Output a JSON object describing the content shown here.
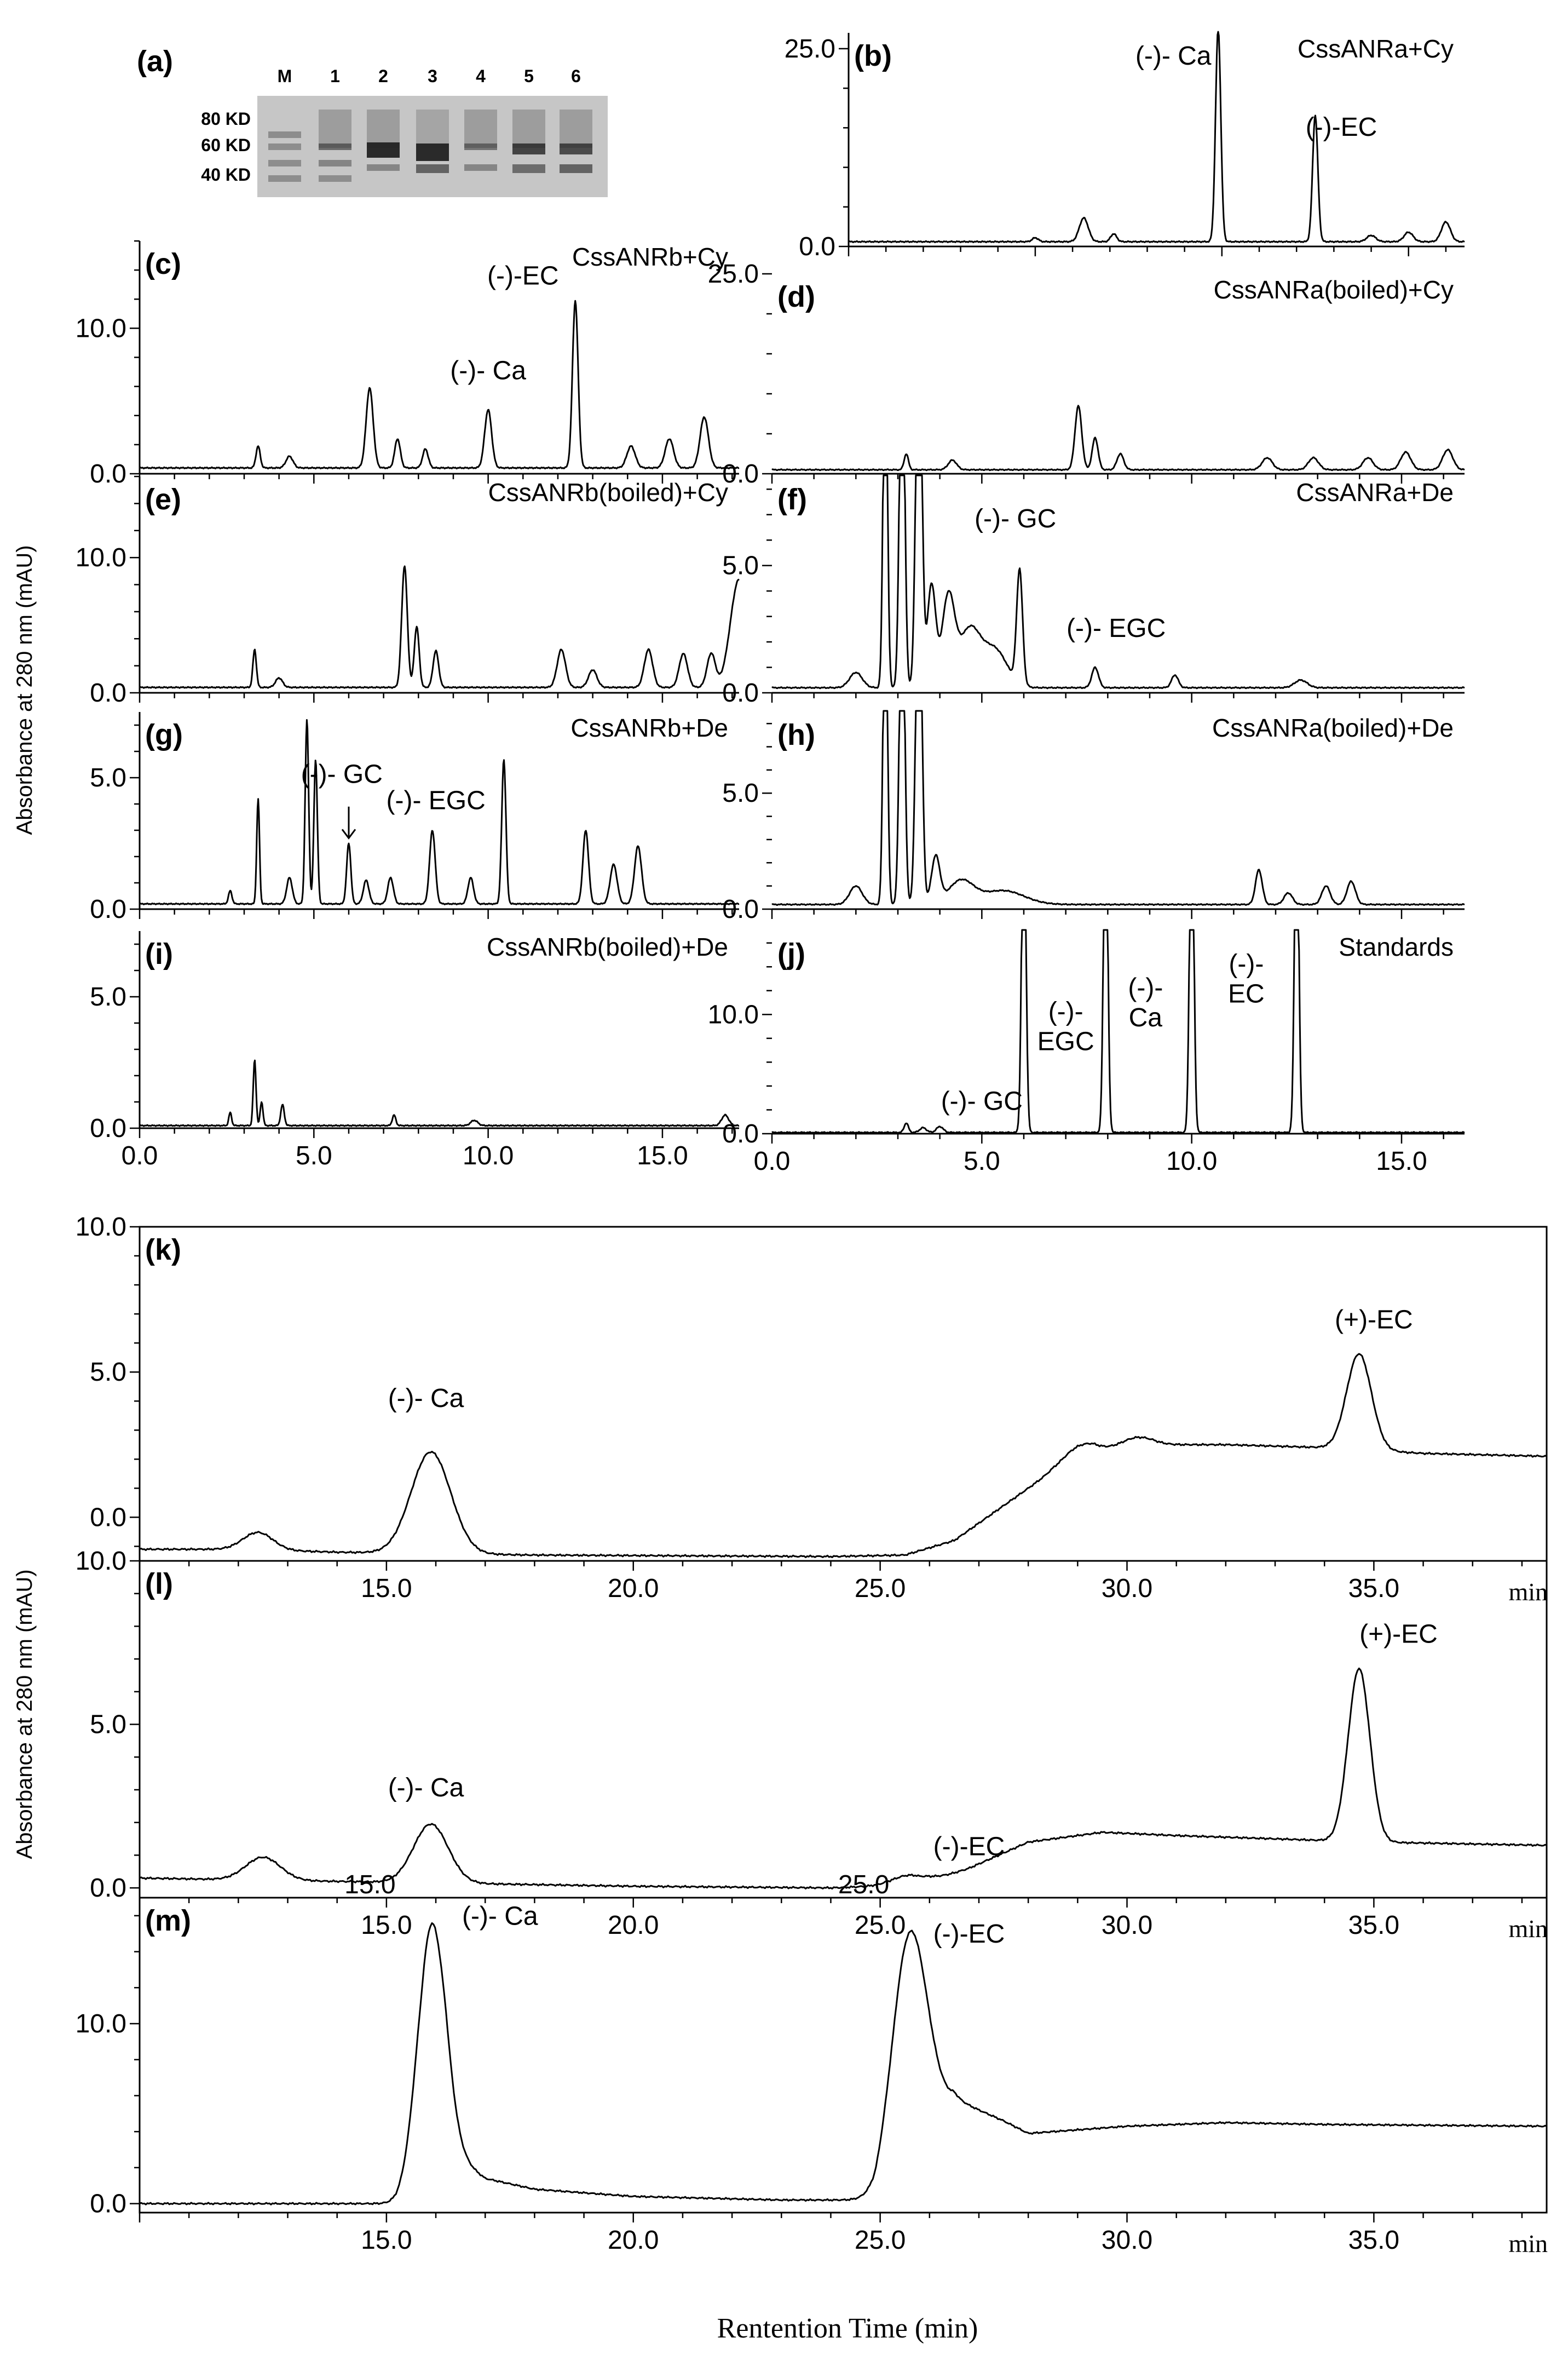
{
  "figure": {
    "yaxis_label_top": "Absorbance at 280 nm (mAU)",
    "yaxis_label_bottom": "Absorbance at 280 nm (mAU)",
    "xaxis_label": "Rentention Time (min)",
    "unit_label": "min"
  },
  "gel": {
    "panel_label": "(a)",
    "lane_labels": [
      "M",
      "1",
      "2",
      "3",
      "4",
      "5",
      "6"
    ],
    "marker_labels": [
      "80 KD",
      "60 KD",
      "40 KD"
    ]
  },
  "chart_data": [
    {
      "id": "b",
      "type": "line",
      "panel_label": "(b)",
      "title": "CssANRa+Cy",
      "xlim": [
        0,
        16.5
      ],
      "ylim": [
        0,
        27
      ],
      "yticks": [
        "0.0",
        "25.0"
      ],
      "xticks": [],
      "baseline": 0.6,
      "peaks": [
        {
          "x": 5.0,
          "h": 0.5,
          "w": 0.08
        },
        {
          "x": 6.3,
          "h": 3.0,
          "w": 0.12
        },
        {
          "x": 7.1,
          "h": 1.0,
          "w": 0.08
        },
        {
          "x": 9.9,
          "h": 27.0,
          "w": 0.07
        },
        {
          "x": 12.5,
          "h": 16.0,
          "w": 0.07
        },
        {
          "x": 14.0,
          "h": 0.8,
          "w": 0.12
        },
        {
          "x": 15.0,
          "h": 1.2,
          "w": 0.12
        },
        {
          "x": 16.0,
          "h": 2.5,
          "w": 0.12
        }
      ],
      "annotations": [
        {
          "text": "(-)- Ca",
          "x": 8.7,
          "y": 23
        },
        {
          "text": "(-)-EC",
          "x": 13.2,
          "y": 14
        }
      ]
    },
    {
      "id": "c",
      "type": "line",
      "panel_label": "(c)",
      "title": "CssANRb+Cy",
      "xlim": [
        0,
        17.2
      ],
      "ylim": [
        0,
        16
      ],
      "yticks": [
        "0.0",
        "10.0"
      ],
      "xticks": [],
      "baseline": 0.4,
      "peaks": [
        {
          "x": 3.4,
          "h": 1.5,
          "w": 0.06
        },
        {
          "x": 4.3,
          "h": 0.8,
          "w": 0.1
        },
        {
          "x": 6.6,
          "h": 5.5,
          "w": 0.1
        },
        {
          "x": 7.4,
          "h": 2.0,
          "w": 0.08
        },
        {
          "x": 8.2,
          "h": 1.3,
          "w": 0.08
        },
        {
          "x": 10.0,
          "h": 4.0,
          "w": 0.1
        },
        {
          "x": 12.5,
          "h": 11.5,
          "w": 0.08
        },
        {
          "x": 14.1,
          "h": 1.5,
          "w": 0.12
        },
        {
          "x": 15.2,
          "h": 2.0,
          "w": 0.12
        },
        {
          "x": 16.2,
          "h": 3.5,
          "w": 0.12
        }
      ],
      "annotations": [
        {
          "text": "(-)- Ca",
          "x": 10.0,
          "y": 6.5
        },
        {
          "text": "(-)-EC",
          "x": 11.0,
          "y": 13
        }
      ]
    },
    {
      "id": "d",
      "type": "line",
      "panel_label": "(d)",
      "title": "CssANRa(boiled)+Cy",
      "xlim": [
        0,
        16.5
      ],
      "ylim": [
        0,
        25
      ],
      "yticks": [
        "0.0",
        "25.0"
      ],
      "xticks": [],
      "baseline": 0.5,
      "peaks": [
        {
          "x": 3.2,
          "h": 2.0,
          "w": 0.05
        },
        {
          "x": 4.3,
          "h": 1.2,
          "w": 0.1
        },
        {
          "x": 7.3,
          "h": 8.0,
          "w": 0.08
        },
        {
          "x": 7.7,
          "h": 4.0,
          "w": 0.07
        },
        {
          "x": 8.3,
          "h": 2.0,
          "w": 0.08
        },
        {
          "x": 11.8,
          "h": 1.5,
          "w": 0.12
        },
        {
          "x": 12.9,
          "h": 1.5,
          "w": 0.12
        },
        {
          "x": 14.2,
          "h": 1.5,
          "w": 0.12
        },
        {
          "x": 15.1,
          "h": 2.2,
          "w": 0.12
        },
        {
          "x": 16.1,
          "h": 2.5,
          "w": 0.12
        }
      ],
      "annotations": []
    },
    {
      "id": "e",
      "type": "line",
      "panel_label": "(e)",
      "title": "CssANRb(boiled)+Cy",
      "xlim": [
        0,
        17.2
      ],
      "ylim": [
        0,
        16
      ],
      "yticks": [
        "0.0",
        "10.0"
      ],
      "xticks": [],
      "baseline": 0.4,
      "peaks": [
        {
          "x": 3.3,
          "h": 2.8,
          "w": 0.05
        },
        {
          "x": 4.0,
          "h": 0.7,
          "w": 0.1
        },
        {
          "x": 7.6,
          "h": 9.0,
          "w": 0.08
        },
        {
          "x": 7.95,
          "h": 4.5,
          "w": 0.07
        },
        {
          "x": 8.5,
          "h": 2.7,
          "w": 0.08
        },
        {
          "x": 12.1,
          "h": 2.8,
          "w": 0.12
        },
        {
          "x": 13.0,
          "h": 1.3,
          "w": 0.12
        },
        {
          "x": 14.6,
          "h": 2.8,
          "w": 0.12
        },
        {
          "x": 15.6,
          "h": 2.5,
          "w": 0.12
        },
        {
          "x": 16.4,
          "h": 2.5,
          "w": 0.12
        },
        {
          "x": 17.2,
          "h": 8.0,
          "w": 0.25
        }
      ],
      "annotations": []
    },
    {
      "id": "f",
      "type": "line",
      "panel_label": "(f)",
      "title": "CssANRa+De",
      "xlim": [
        0,
        16.5
      ],
      "ylim": [
        0,
        8.5
      ],
      "yticks": [
        "0.0",
        "5.0"
      ],
      "xticks": [],
      "baseline": 0.2,
      "peaks": [
        {
          "x": 2.0,
          "h": 0.6,
          "w": 0.15
        },
        {
          "x": 2.7,
          "h": 15.0,
          "w": 0.05
        },
        {
          "x": 3.1,
          "h": 15.0,
          "w": 0.06
        },
        {
          "x": 3.5,
          "h": 15.0,
          "w": 0.07
        },
        {
          "x": 3.8,
          "h": 4.0,
          "w": 0.1
        },
        {
          "x": 4.2,
          "h": 3.5,
          "w": 0.15
        },
        {
          "x": 4.7,
          "h": 2.2,
          "w": 0.25
        },
        {
          "x": 5.3,
          "h": 1.5,
          "w": 0.3
        },
        {
          "x": 5.9,
          "h": 4.5,
          "w": 0.07
        },
        {
          "x": 7.7,
          "h": 0.8,
          "w": 0.08
        },
        {
          "x": 9.6,
          "h": 0.5,
          "w": 0.08
        },
        {
          "x": 12.6,
          "h": 0.3,
          "w": 0.15
        }
      ],
      "annotations": [
        {
          "text": "(-)- GC",
          "x": 5.8,
          "y": 6.5
        },
        {
          "text": "(-)- EGC",
          "x": 8.2,
          "y": 2.2
        }
      ]
    },
    {
      "id": "g",
      "type": "line",
      "panel_label": "(g)",
      "title": "CssANRb+De",
      "xlim": [
        0,
        17.2
      ],
      "ylim": [
        0,
        7.5
      ],
      "yticks": [
        "0.0",
        "5.0"
      ],
      "xticks": [],
      "baseline": 0.2,
      "peaks": [
        {
          "x": 2.6,
          "h": 0.5,
          "w": 0.05
        },
        {
          "x": 3.4,
          "h": 4.0,
          "w": 0.04
        },
        {
          "x": 4.3,
          "h": 1.0,
          "w": 0.08
        },
        {
          "x": 4.8,
          "h": 7.0,
          "w": 0.05
        },
        {
          "x": 5.05,
          "h": 5.5,
          "w": 0.05
        },
        {
          "x": 6.0,
          "h": 2.3,
          "w": 0.06
        },
        {
          "x": 6.5,
          "h": 0.9,
          "w": 0.08
        },
        {
          "x": 7.2,
          "h": 1.0,
          "w": 0.08
        },
        {
          "x": 8.4,
          "h": 2.8,
          "w": 0.08
        },
        {
          "x": 9.5,
          "h": 1.0,
          "w": 0.08
        },
        {
          "x": 10.45,
          "h": 5.5,
          "w": 0.06
        },
        {
          "x": 12.8,
          "h": 2.8,
          "w": 0.08
        },
        {
          "x": 13.6,
          "h": 1.5,
          "w": 0.1
        },
        {
          "x": 14.3,
          "h": 2.2,
          "w": 0.1
        }
      ],
      "annotations": [
        {
          "text": "(-)- GC",
          "x": 5.8,
          "y": 4.8
        },
        {
          "text": "(-)- EGC",
          "x": 8.5,
          "y": 3.8
        }
      ],
      "arrow": {
        "x": 6.0,
        "y1": 3.9,
        "y2": 2.7
      }
    },
    {
      "id": "h",
      "type": "line",
      "panel_label": "(h)",
      "title": "CssANRa(boiled)+De",
      "xlim": [
        0,
        16.5
      ],
      "ylim": [
        0,
        8.5
      ],
      "yticks": [
        "0.0",
        "5.0"
      ],
      "xticks": [],
      "baseline": 0.2,
      "peaks": [
        {
          "x": 2.0,
          "h": 0.8,
          "w": 0.15
        },
        {
          "x": 2.7,
          "h": 15.0,
          "w": 0.05
        },
        {
          "x": 3.1,
          "h": 15.0,
          "w": 0.06
        },
        {
          "x": 3.5,
          "h": 15.0,
          "w": 0.07
        },
        {
          "x": 3.9,
          "h": 2.0,
          "w": 0.1
        },
        {
          "x": 4.5,
          "h": 1.0,
          "w": 0.3
        },
        {
          "x": 5.5,
          "h": 0.6,
          "w": 0.5
        },
        {
          "x": 11.6,
          "h": 1.5,
          "w": 0.08
        },
        {
          "x": 12.3,
          "h": 0.5,
          "w": 0.1
        },
        {
          "x": 13.2,
          "h": 0.8,
          "w": 0.1
        },
        {
          "x": 13.8,
          "h": 1.0,
          "w": 0.1
        }
      ],
      "annotations": []
    },
    {
      "id": "i",
      "type": "line",
      "panel_label": "(i)",
      "title": "CssANRb(boiled)+De",
      "xlim": [
        0,
        17.2
      ],
      "ylim": [
        0,
        7.5
      ],
      "yticks": [
        "0.0",
        "5.0"
      ],
      "xticks": [
        "0.0",
        "5.0",
        "10.0",
        "15.0"
      ],
      "baseline": 0.1,
      "peaks": [
        {
          "x": 2.6,
          "h": 0.5,
          "w": 0.04
        },
        {
          "x": 3.3,
          "h": 2.5,
          "w": 0.04
        },
        {
          "x": 3.5,
          "h": 0.9,
          "w": 0.04
        },
        {
          "x": 4.1,
          "h": 0.8,
          "w": 0.05
        },
        {
          "x": 7.3,
          "h": 0.4,
          "w": 0.05
        },
        {
          "x": 9.6,
          "h": 0.2,
          "w": 0.1
        },
        {
          "x": 16.8,
          "h": 0.4,
          "w": 0.1
        }
      ],
      "annotations": []
    },
    {
      "id": "j",
      "type": "line",
      "panel_label": "(j)",
      "title": "Standards",
      "xlim": [
        0,
        16.5
      ],
      "ylim": [
        0,
        17
      ],
      "yticks": [
        "0.0",
        "10.0"
      ],
      "xticks": [
        "0.0",
        "5.0",
        "10.0",
        "15.0"
      ],
      "baseline": 0.1,
      "peaks": [
        {
          "x": 3.2,
          "h": 0.8,
          "w": 0.05
        },
        {
          "x": 3.6,
          "h": 0.4,
          "w": 0.08
        },
        {
          "x": 4.0,
          "h": 0.5,
          "w": 0.08
        },
        {
          "x": 6.0,
          "h": 30.0,
          "w": 0.05
        },
        {
          "x": 7.95,
          "h": 30.0,
          "w": 0.05
        },
        {
          "x": 10.0,
          "h": 30.0,
          "w": 0.05
        },
        {
          "x": 12.5,
          "h": 30.0,
          "w": 0.05
        }
      ],
      "annotations": [
        {
          "text": "(-)- GC",
          "x": 5.0,
          "y": 2.0
        },
        {
          "text": "(-)-",
          "x": 7.0,
          "y": 9.5
        },
        {
          "text": "EGC",
          "x": 7.0,
          "y": 7.0
        },
        {
          "text": "(-)-",
          "x": 8.9,
          "y": 11.5
        },
        {
          "text": "Ca",
          "x": 8.9,
          "y": 9.0
        },
        {
          "text": "(-)-",
          "x": 11.3,
          "y": 13.5
        },
        {
          "text": "EC",
          "x": 11.3,
          "y": 11.0
        }
      ]
    },
    {
      "id": "k",
      "type": "line",
      "panel_label": "(k)",
      "title": "",
      "xlim": [
        10,
        38.5
      ],
      "ylim": [
        -1.5,
        10
      ],
      "yticks": [
        "0.0",
        "5.0",
        "10.0"
      ],
      "xticks": [
        "15.0",
        "20.0",
        "25.0",
        "30.0",
        "35.0"
      ],
      "unit_label": "min",
      "baseline_points": [
        [
          10,
          -1.1
        ],
        [
          12,
          -1.1
        ],
        [
          14,
          -1.2
        ],
        [
          18,
          -1.3
        ],
        [
          24,
          -1.35
        ],
        [
          25.5,
          -1.3
        ],
        [
          26.5,
          -0.8
        ],
        [
          27.5,
          0.4
        ],
        [
          28.5,
          1.6
        ],
        [
          29.3,
          2.3
        ],
        [
          30.5,
          2.5
        ],
        [
          32,
          2.5
        ],
        [
          34,
          2.4
        ],
        [
          36,
          2.2
        ],
        [
          38.5,
          2.1
        ]
      ],
      "peaks": [
        {
          "x": 12.4,
          "h": 0.6,
          "w": 0.3
        },
        {
          "x": 15.9,
          "h": 3.5,
          "w": 0.4
        },
        {
          "x": 29.0,
          "h": 0.4,
          "w": 0.3
        },
        {
          "x": 30.2,
          "h": 0.3,
          "w": 0.3
        },
        {
          "x": 34.7,
          "h": 3.3,
          "w": 0.25
        }
      ],
      "annotations": [
        {
          "text": "(-)- Ca",
          "x": 15.8,
          "y": 3.8
        },
        {
          "text": "(+)-EC",
          "x": 35.0,
          "y": 6.5
        }
      ]
    },
    {
      "id": "l",
      "type": "line",
      "panel_label": "(l)",
      "title": "",
      "xlim": [
        10,
        38.5
      ],
      "ylim": [
        -0.3,
        10
      ],
      "yticks": [
        "0.0",
        "5.0",
        "10.0"
      ],
      "xticks": [
        "15.0",
        "20.0",
        "25.0",
        "30.0",
        "35.0"
      ],
      "unit_label": "min",
      "baseline_points": [
        [
          10,
          0.3
        ],
        [
          14,
          0.2
        ],
        [
          20,
          0.05
        ],
        [
          24,
          0.0
        ],
        [
          25.8,
          0.1
        ],
        [
          26.8,
          0.6
        ],
        [
          28,
          1.4
        ],
        [
          29.5,
          1.7
        ],
        [
          31,
          1.6
        ],
        [
          33,
          1.5
        ],
        [
          35,
          1.4
        ],
        [
          38.5,
          1.3
        ]
      ],
      "peaks": [
        {
          "x": 12.5,
          "h": 0.7,
          "w": 0.35
        },
        {
          "x": 15.9,
          "h": 1.8,
          "w": 0.35
        },
        {
          "x": 25.6,
          "h": 0.3,
          "w": 0.35
        },
        {
          "x": 34.7,
          "h": 5.3,
          "w": 0.22
        }
      ],
      "annotations": [
        {
          "text": "(-)- Ca",
          "x": 15.8,
          "y": 2.8
        },
        {
          "text": "(-)-EC",
          "x": 26.8,
          "y": 1.0
        },
        {
          "text": "(+)-EC",
          "x": 35.5,
          "y": 7.5
        }
      ]
    },
    {
      "id": "m",
      "type": "line",
      "panel_label": "(m)",
      "title": "",
      "xlim": [
        10,
        38.5
      ],
      "ylim": [
        -0.5,
        17
      ],
      "yticks": [
        "0.0",
        "10.0"
      ],
      "xticks": [
        "15.0",
        "20.0",
        "25.0",
        "30.0",
        "35.0"
      ],
      "top_ticks": [
        {
          "x": 15.0,
          "label": "15.0"
        },
        {
          "x": 25.0,
          "label": "25.0"
        }
      ],
      "unit_label": "min",
      "baseline_points": [
        [
          10,
          0.0
        ],
        [
          15.2,
          0.0
        ],
        [
          15.7,
          0.5
        ],
        [
          16.2,
          3.0
        ],
        [
          17,
          1.4
        ],
        [
          18,
          0.8
        ],
        [
          20,
          0.4
        ],
        [
          23,
          0.2
        ],
        [
          24.9,
          0.2
        ],
        [
          25.4,
          2.5
        ],
        [
          26.5,
          5.8
        ],
        [
          27.5,
          4.6
        ],
        [
          28,
          3.9
        ],
        [
          30,
          4.3
        ],
        [
          32,
          4.5
        ],
        [
          34,
          4.4
        ],
        [
          38.5,
          4.3
        ]
      ],
      "peaks": [
        {
          "x": 15.9,
          "h": 14.0,
          "w": 0.28
        },
        {
          "x": 25.6,
          "h": 12.0,
          "w": 0.35
        }
      ],
      "annotations": [
        {
          "text": "(-)- Ca",
          "x": 17.3,
          "y": 15.5
        },
        {
          "text": "(-)-EC",
          "x": 26.8,
          "y": 14.5
        }
      ]
    }
  ]
}
